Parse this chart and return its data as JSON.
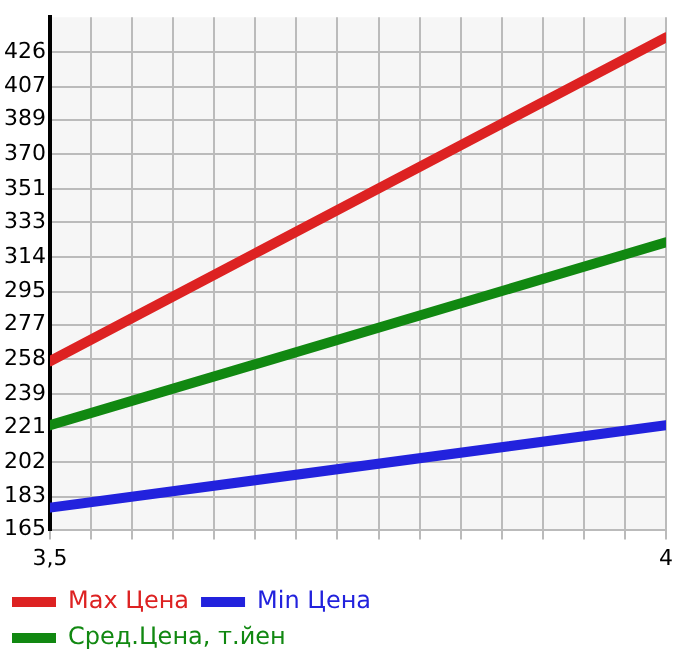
{
  "chart_data": {
    "type": "line",
    "x": [
      3.5,
      4
    ],
    "series": [
      {
        "name": "Max Цена",
        "color": "#dd2222",
        "values": [
          257,
          434
        ]
      },
      {
        "name": "Min Цена",
        "color": "#2222dd",
        "values": [
          177,
          222
        ]
      },
      {
        "name": "Сред.Цена, т.йен",
        "color": "#118811",
        "values": [
          222,
          322
        ]
      }
    ],
    "xlim": [
      3.5,
      4
    ],
    "xticks": [
      {
        "value": 3.5,
        "label": "3,5"
      },
      {
        "value": 3.5333,
        "label": null
      },
      {
        "value": 3.5667,
        "label": null
      },
      {
        "value": 3.6,
        "label": null
      },
      {
        "value": 3.6333,
        "label": null
      },
      {
        "value": 3.6667,
        "label": null
      },
      {
        "value": 3.7,
        "label": null
      },
      {
        "value": 3.7333,
        "label": null
      },
      {
        "value": 3.7667,
        "label": null
      },
      {
        "value": 3.8,
        "label": null
      },
      {
        "value": 3.8333,
        "label": null
      },
      {
        "value": 3.8667,
        "label": null
      },
      {
        "value": 3.9,
        "label": null
      },
      {
        "value": 3.9333,
        "label": null
      },
      {
        "value": 3.9667,
        "label": null
      },
      4
    ],
    "ylim": [
      165,
      445
    ],
    "yticks": [
      165,
      183,
      202,
      221,
      239,
      258,
      277,
      295,
      314,
      333,
      351,
      370,
      389,
      407,
      426
    ],
    "grid": true,
    "legend": "bottom",
    "marker": "none",
    "line_style": "solid"
  }
}
